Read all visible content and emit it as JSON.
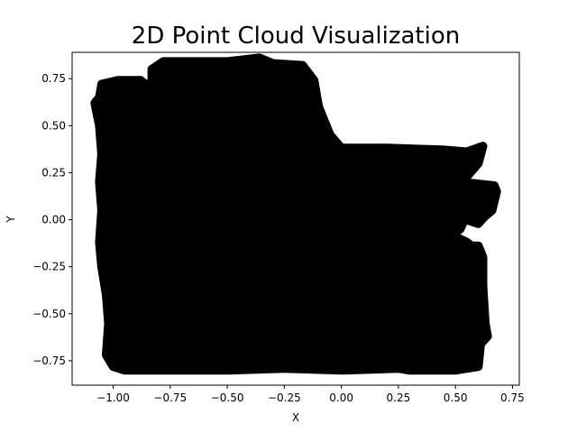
{
  "chart_data": {
    "type": "scatter",
    "title": "2D Point Cloud Visualization",
    "xlabel": "X",
    "ylabel": "Y",
    "xlim": [
      -1.18,
      0.78
    ],
    "ylim": [
      -0.88,
      0.89
    ],
    "xticks": [
      -1.0,
      -0.75,
      -0.5,
      -0.25,
      0.0,
      0.25,
      0.5,
      0.75
    ],
    "xtick_labels": [
      "−1.00",
      "−0.75",
      "−0.50",
      "−0.25",
      "0.00",
      "0.25",
      "0.50",
      "0.75"
    ],
    "yticks": [
      -0.75,
      -0.5,
      -0.25,
      0.0,
      0.25,
      0.5,
      0.75
    ],
    "ytick_labels": [
      "−0.75",
      "−0.50",
      "−0.25",
      "0.00",
      "0.25",
      "0.50",
      "0.75"
    ],
    "grid": false,
    "marker_color": "#000000",
    "point_cloud_outline": [
      [
        -1.06,
        0.65
      ],
      [
        -1.05,
        0.72
      ],
      [
        -0.98,
        0.74
      ],
      [
        -0.88,
        0.74
      ],
      [
        -0.86,
        0.72
      ],
      [
        -0.83,
        0.72
      ],
      [
        -0.83,
        0.8
      ],
      [
        -0.78,
        0.84
      ],
      [
        -0.5,
        0.84
      ],
      [
        -0.36,
        0.86
      ],
      [
        -0.3,
        0.83
      ],
      [
        -0.17,
        0.82
      ],
      [
        -0.12,
        0.74
      ],
      [
        -0.1,
        0.6
      ],
      [
        -0.05,
        0.45
      ],
      [
        0.0,
        0.38
      ],
      [
        0.2,
        0.38
      ],
      [
        0.45,
        0.37
      ],
      [
        0.55,
        0.36
      ],
      [
        0.62,
        0.39
      ],
      [
        0.6,
        0.3
      ],
      [
        0.55,
        0.23
      ],
      [
        0.52,
        0.2
      ],
      [
        0.67,
        0.18
      ],
      [
        0.68,
        0.15
      ],
      [
        0.66,
        0.05
      ],
      [
        0.63,
        0.02
      ],
      [
        0.6,
        -0.02
      ],
      [
        0.55,
        0.0
      ],
      [
        0.55,
        0.03
      ],
      [
        0.52,
        -0.05
      ],
      [
        0.48,
        -0.08
      ],
      [
        0.55,
        -0.12
      ],
      [
        0.57,
        -0.14
      ],
      [
        0.6,
        -0.14
      ],
      [
        0.62,
        -0.2
      ],
      [
        0.62,
        -0.35
      ],
      [
        0.63,
        -0.55
      ],
      [
        0.64,
        -0.62
      ],
      [
        0.61,
        -0.66
      ],
      [
        0.6,
        -0.78
      ],
      [
        0.5,
        -0.8
      ],
      [
        0.3,
        -0.8
      ],
      [
        0.25,
        -0.79
      ],
      [
        0.0,
        -0.8
      ],
      [
        -0.25,
        -0.79
      ],
      [
        -0.5,
        -0.8
      ],
      [
        -0.75,
        -0.8
      ],
      [
        -0.95,
        -0.8
      ],
      [
        -1.0,
        -0.78
      ],
      [
        -1.03,
        -0.72
      ],
      [
        -1.02,
        -0.55
      ],
      [
        -1.03,
        -0.4
      ],
      [
        -1.05,
        -0.25
      ],
      [
        -1.06,
        -0.12
      ],
      [
        -1.05,
        0.05
      ],
      [
        -1.06,
        0.2
      ],
      [
        -1.05,
        0.35
      ],
      [
        -1.06,
        0.5
      ],
      [
        -1.08,
        0.62
      ]
    ]
  }
}
